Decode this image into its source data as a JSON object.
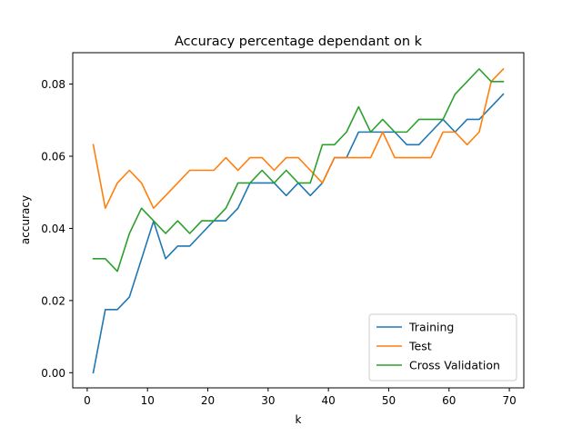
{
  "chart_data": {
    "type": "line",
    "title": "Accuracy percentage dependant on k",
    "xlabel": "k",
    "ylabel": "accuracy",
    "xlim": [
      -2.4,
      72.4
    ],
    "ylim": [
      -0.0042,
      0.0887
    ],
    "xticks": [
      0,
      10,
      20,
      30,
      40,
      50,
      60,
      70
    ],
    "yticks": [
      0.0,
      0.02,
      0.04,
      0.06,
      0.08
    ],
    "ytick_labels": [
      "0.00",
      "0.02",
      "0.04",
      "0.06",
      "0.08"
    ],
    "legend_position": "lower-right",
    "grid": false,
    "x": [
      1,
      3,
      5,
      7,
      9,
      11,
      13,
      15,
      17,
      19,
      21,
      23,
      25,
      27,
      29,
      31,
      33,
      35,
      37,
      39,
      41,
      43,
      45,
      47,
      49,
      51,
      53,
      55,
      57,
      59,
      61,
      63,
      65,
      67,
      69
    ],
    "series": [
      {
        "name": "Training",
        "color": "#1f77b4",
        "values": [
          0.0,
          0.0175,
          0.0175,
          0.021,
          0.0315,
          0.042,
          0.0316,
          0.0351,
          0.0351,
          0.0386,
          0.0421,
          0.0421,
          0.0456,
          0.0526,
          0.0526,
          0.0526,
          0.0491,
          0.0526,
          0.0491,
          0.0526,
          0.0596,
          0.0596,
          0.0667,
          0.0667,
          0.0667,
          0.0667,
          0.0632,
          0.0632,
          0.0667,
          0.0702,
          0.0667,
          0.0702,
          0.0702,
          0.0737,
          0.0772
        ]
      },
      {
        "name": "Test",
        "color": "#ff7f0e",
        "values": [
          0.0632,
          0.0456,
          0.0526,
          0.0561,
          0.0526,
          0.0456,
          0.0491,
          0.0526,
          0.0561,
          0.0561,
          0.0561,
          0.0596,
          0.0561,
          0.0596,
          0.0596,
          0.0561,
          0.0596,
          0.0596,
          0.0561,
          0.0526,
          0.0596,
          0.0596,
          0.0596,
          0.0596,
          0.0667,
          0.0596,
          0.0596,
          0.0596,
          0.0596,
          0.0667,
          0.0667,
          0.0632,
          0.0667,
          0.0807,
          0.0842
        ]
      },
      {
        "name": "Cross Validation",
        "color": "#2ca02c",
        "values": [
          0.0316,
          0.0316,
          0.0281,
          0.0386,
          0.0456,
          0.0421,
          0.0386,
          0.0421,
          0.0386,
          0.0421,
          0.0421,
          0.0456,
          0.0526,
          0.0526,
          0.0561,
          0.0526,
          0.0561,
          0.0526,
          0.0526,
          0.0632,
          0.0632,
          0.0667,
          0.0737,
          0.0667,
          0.0702,
          0.0667,
          0.0667,
          0.0702,
          0.0702,
          0.0702,
          0.0772,
          0.0807,
          0.0842,
          0.0807,
          0.0807
        ]
      }
    ]
  }
}
